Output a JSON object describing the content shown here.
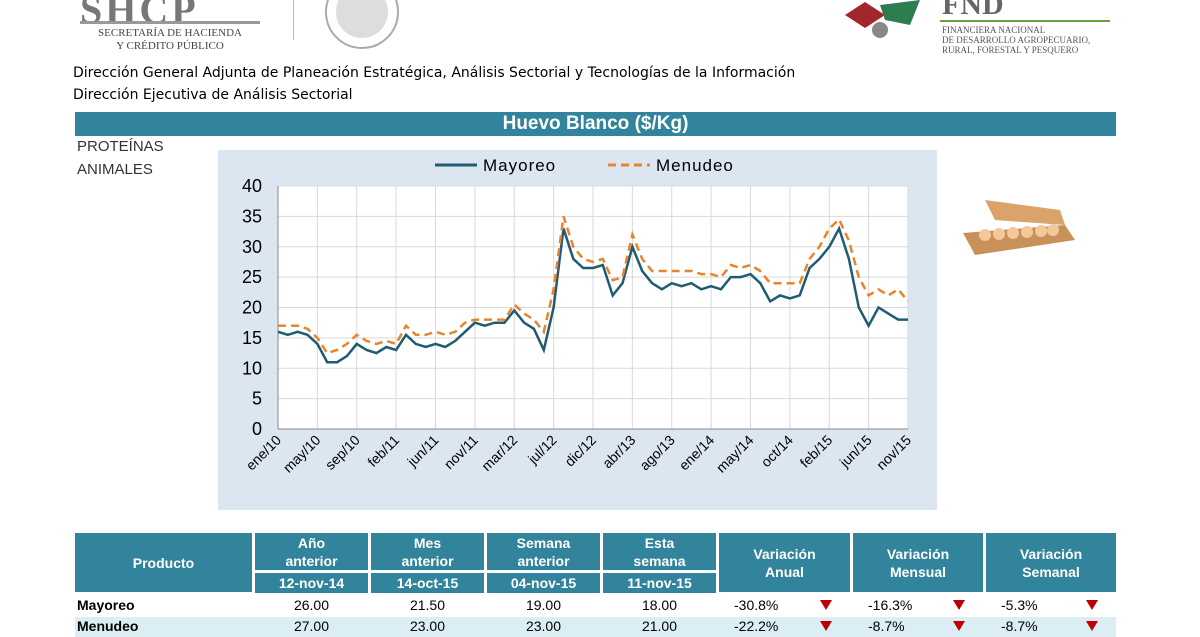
{
  "header": {
    "shcp": "SHCP",
    "shcp_lines": [
      "SECRETARÍA DE HACIENDA",
      "Y CRÉDITO PÚBLICO"
    ],
    "fnd": "FND",
    "fnd_lines": [
      "FINANCIERA NACIONAL",
      "DE DESARROLLO AGROPECUARIO,",
      "RURAL, FORESTAL Y PESQUERO"
    ],
    "lines": [
      "Dirección General Adjunta de Planeación Estratégica, Análisis Sectorial y Tecnologías de la Información",
      "Dirección Ejecutiva de Análisis Sectorial"
    ]
  },
  "section_title": "Huevo Blanco ($/Kg)",
  "category": [
    "PROTEÍNAS",
    "ANIMALES"
  ],
  "chart_data": {
    "type": "line",
    "categories": [
      "ene/10",
      null,
      null,
      null,
      "may/10",
      null,
      null,
      null,
      "sep/10",
      null,
      null,
      null,
      "feb/11",
      null,
      null,
      null,
      "jun/11",
      null,
      null,
      null,
      "nov/11",
      null,
      null,
      null,
      "mar/12",
      null,
      null,
      null,
      "jul/12",
      null,
      null,
      null,
      "dic/12",
      null,
      null,
      null,
      "abr/13",
      null,
      null,
      null,
      "ago/13",
      null,
      null,
      null,
      "ene/14",
      null,
      null,
      null,
      "may/14",
      null,
      null,
      null,
      "oct/14",
      null,
      null,
      null,
      "feb/15",
      null,
      null,
      null,
      "jun/15",
      null,
      null,
      null,
      "nov/15"
    ],
    "series": [
      {
        "name": "Mayoreo",
        "color": "#1f5c73",
        "dashed": false,
        "values": [
          16,
          15.5,
          16,
          15.5,
          14,
          11,
          11,
          12,
          14,
          13,
          12.5,
          13.5,
          13,
          15.5,
          14,
          13.5,
          14,
          13.5,
          14.5,
          16,
          17.5,
          17,
          17.5,
          17.5,
          19.5,
          17.5,
          16.5,
          13,
          20,
          33,
          28,
          26.5,
          26.5,
          27,
          22,
          24,
          30,
          26,
          24,
          23,
          24,
          23.5,
          24,
          23,
          23.5,
          23,
          25,
          25,
          25.5,
          24,
          21,
          22,
          21.5,
          22,
          26.5,
          28,
          30,
          33,
          28,
          20,
          17,
          20,
          19,
          18,
          18
        ]
      },
      {
        "name": "Menudeo",
        "color": "#e9842a",
        "dashed": true,
        "values": [
          17,
          17,
          17,
          16.5,
          15,
          12.5,
          13,
          14,
          15.5,
          14.5,
          14,
          14.5,
          14,
          17,
          15.5,
          15.5,
          16,
          15.5,
          16,
          17.5,
          18,
          18,
          18,
          18,
          20.5,
          19,
          18,
          16,
          23,
          35,
          30,
          28,
          27.5,
          28,
          24.5,
          25,
          32,
          28,
          26,
          26,
          26,
          26,
          26,
          25.5,
          25.5,
          25,
          27,
          26.5,
          27,
          26,
          24,
          24,
          24,
          24,
          28,
          30,
          33,
          34.5,
          31,
          25,
          22,
          23,
          22,
          23,
          21
        ]
      }
    ],
    "ylim": [
      0,
      40
    ],
    "yticks": [
      0,
      5,
      10,
      15,
      20,
      25,
      30,
      35,
      40
    ],
    "grid": true,
    "legend": "top"
  },
  "table": {
    "columns": [
      [
        "Producto"
      ],
      [
        "Año",
        "anterior"
      ],
      [
        "Mes",
        "anterior"
      ],
      [
        "Semana",
        "anterior"
      ],
      [
        "Esta",
        "semana"
      ],
      [
        "Variación",
        "Anual"
      ],
      [
        "Variación",
        "Mensual"
      ],
      [
        "Variación",
        "Semanal"
      ]
    ],
    "dates": [
      "12-nov-14",
      "14-oct-15",
      "04-nov-15",
      "11-nov-15"
    ],
    "rows": [
      [
        "Mayoreo",
        "26.00",
        "21.50",
        "19.00",
        "18.00",
        "-30.8%",
        "-16.3%",
        "-5.3%"
      ],
      [
        "Menudeo",
        "27.00",
        "23.00",
        "23.00",
        "21.00",
        "-22.2%",
        "-8.7%",
        "-8.7%"
      ]
    ]
  }
}
